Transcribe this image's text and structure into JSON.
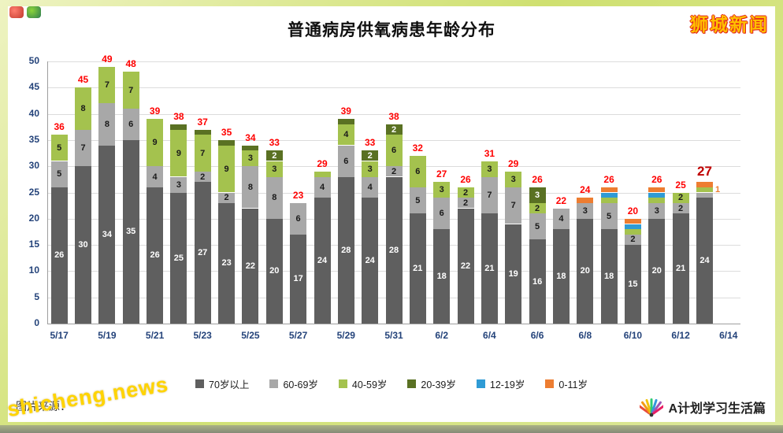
{
  "header": {
    "brand": "狮城新闻"
  },
  "watermark": {
    "text": "shicheng.news",
    "caption": "图片来源："
  },
  "footer_logo": {
    "text": "A计划学习生活篇"
  },
  "chart_data": {
    "type": "bar",
    "stacked": true,
    "title": "普通病房供氧病患年龄分布",
    "xlabel": "",
    "ylabel": "",
    "ylim": [
      0,
      50
    ],
    "yticks": [
      0,
      5,
      10,
      15,
      20,
      25,
      30,
      35,
      40,
      45,
      50
    ],
    "grid": true,
    "legend_position": "bottom",
    "categories": [
      "5/17",
      "5/18",
      "5/19",
      "5/20",
      "5/21",
      "5/22",
      "5/23",
      "5/24",
      "5/25",
      "5/26",
      "5/27",
      "5/28",
      "5/29",
      "5/30",
      "5/31",
      "6/1",
      "6/2",
      "6/3",
      "6/4",
      "6/5",
      "6/6",
      "6/7",
      "6/8",
      "6/9",
      "6/10",
      "6/11",
      "6/12",
      "6/13"
    ],
    "x_axis_labels": [
      "5/17",
      "5/19",
      "5/21",
      "5/23",
      "5/25",
      "5/27",
      "5/29",
      "5/31",
      "6/2",
      "6/4",
      "6/6",
      "6/8",
      "6/10",
      "6/12",
      "6/14"
    ],
    "series": [
      {
        "name": "70岁以上",
        "color": "#5f5f5f",
        "label_color": "#ffffff",
        "values": [
          26,
          30,
          34,
          35,
          26,
          25,
          27,
          23,
          22,
          20,
          17,
          24,
          28,
          24,
          28,
          21,
          18,
          22,
          21,
          19,
          16,
          18,
          20,
          18,
          15,
          20,
          21,
          24
        ]
      },
      {
        "name": "60-69岁",
        "color": "#a8a8a8",
        "label_color": "#1a1a1a",
        "values": [
          5,
          7,
          8,
          6,
          4,
          3,
          2,
          2,
          8,
          8,
          6,
          4,
          6,
          4,
          2,
          5,
          6,
          2,
          7,
          7,
          5,
          4,
          3,
          5,
          2,
          3,
          2,
          1
        ]
      },
      {
        "name": "40-59岁",
        "color": "#a4c24e",
        "label_color": "#1a1a1a",
        "values": [
          5,
          8,
          7,
          7,
          9,
          9,
          7,
          9,
          3,
          3,
          0,
          1,
          4,
          3,
          6,
          6,
          3,
          2,
          3,
          3,
          2,
          0,
          0,
          1,
          1,
          1,
          2,
          1
        ]
      },
      {
        "name": "20-39岁",
        "color": "#5a7123",
        "label_color": "#ffffff",
        "values": [
          0,
          0,
          0,
          0,
          0,
          1,
          1,
          1,
          1,
          2,
          0,
          0,
          1,
          2,
          2,
          0,
          0,
          0,
          0,
          0,
          3,
          0,
          0,
          0,
          0,
          0,
          0,
          0
        ]
      },
      {
        "name": "12-19岁",
        "color": "#2f9bd5",
        "label_color": "#ffffff",
        "values": [
          0,
          0,
          0,
          0,
          0,
          0,
          0,
          0,
          0,
          0,
          0,
          0,
          0,
          0,
          0,
          0,
          0,
          0,
          0,
          0,
          0,
          0,
          0,
          1,
          1,
          1,
          0,
          0
        ]
      },
      {
        "name": "0-11岁",
        "color": "#ed7d31",
        "label_color": "#ffffff",
        "values": [
          0,
          0,
          0,
          0,
          0,
          0,
          0,
          0,
          0,
          0,
          0,
          0,
          0,
          0,
          0,
          0,
          0,
          0,
          0,
          0,
          0,
          0,
          1,
          1,
          1,
          1,
          0,
          1
        ]
      }
    ],
    "totals": [
      36,
      45,
      49,
      48,
      39,
      38,
      37,
      35,
      34,
      33,
      23,
      29,
      39,
      33,
      38,
      32,
      27,
      26,
      31,
      29,
      26,
      22,
      24,
      26,
      20,
      26,
      25,
      27
    ],
    "total_label_color": "#ff0000",
    "last_total_color": "#c00000",
    "outside_label": {
      "text": "1",
      "color": "#ed7d31"
    }
  }
}
